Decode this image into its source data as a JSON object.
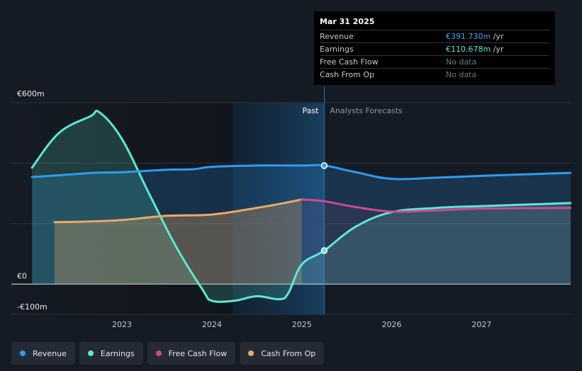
{
  "tooltip": {
    "date": "Mar 31 2025",
    "rows": [
      {
        "label": "Revenue",
        "value": "€391.730m",
        "unit": " /yr",
        "color": "#4aa3f0"
      },
      {
        "label": "Earnings",
        "value": "€110.678m",
        "unit": " /yr",
        "color": "#5ee8cf"
      },
      {
        "label": "Free Cash Flow",
        "value": "No data",
        "unit": "",
        "color": "#6f7782"
      },
      {
        "label": "Cash From Op",
        "value": "No data",
        "unit": "",
        "color": "#6f7782"
      }
    ]
  },
  "legend": [
    {
      "label": "Revenue",
      "color": "#2f9bf2"
    },
    {
      "label": "Earnings",
      "color": "#5ee8cf"
    },
    {
      "label": "Free Cash Flow",
      "color": "#cc4a8f"
    },
    {
      "label": "Cash From Op",
      "color": "#e8a965"
    }
  ],
  "chart_data": {
    "type": "area",
    "title": "",
    "xlabel": "",
    "ylabel": "",
    "ylim": [
      -100,
      600
    ],
    "y_ticks": [
      {
        "value": 600,
        "label": "€600m"
      },
      {
        "value": 0,
        "label": "€0"
      },
      {
        "value": -100,
        "label": "-€100m"
      }
    ],
    "x_ticks": [
      {
        "value": 2023,
        "label": "2023"
      },
      {
        "value": 2024,
        "label": "2024"
      },
      {
        "value": 2025,
        "label": "2025"
      },
      {
        "value": 2026,
        "label": "2026"
      },
      {
        "value": 2027,
        "label": "2027"
      }
    ],
    "xlim": [
      2021.77,
      2027.99
    ],
    "past_label": "Past",
    "forecast_label": "Analysts Forecasts",
    "divider_x": 2025.25,
    "series": [
      {
        "name": "Revenue",
        "color": "#2f9bf2",
        "x": [
          2022.0,
          2022.3,
          2022.7,
          2023.0,
          2023.5,
          2023.8,
          2024.0,
          2024.5,
          2025.0,
          2025.25,
          2025.6,
          2026.0,
          2026.5,
          2027.0,
          2027.99
        ],
        "values": [
          354,
          360,
          368,
          370,
          378,
          380,
          388,
          392,
          392,
          392,
          370,
          348,
          352,
          358,
          368
        ]
      },
      {
        "name": "Earnings",
        "color": "#5ee8cf",
        "x": [
          2022.0,
          2022.3,
          2022.65,
          2022.75,
          2023.0,
          2023.3,
          2023.6,
          2023.9,
          2024.0,
          2024.25,
          2024.5,
          2024.75,
          2024.85,
          2025.0,
          2025.25,
          2025.6,
          2026.0,
          2026.5,
          2027.0,
          2027.99
        ],
        "values": [
          385,
          500,
          555,
          568,
          480,
          300,
          125,
          -20,
          -55,
          -55,
          -40,
          -50,
          -30,
          65,
          111,
          190,
          238,
          252,
          258,
          268
        ]
      },
      {
        "name": "Free Cash Flow",
        "color": "#cc4a8f",
        "x": [
          2025.0,
          2025.25,
          2025.6,
          2026.0,
          2026.5,
          2027.0,
          2027.99
        ],
        "values": [
          280,
          274,
          255,
          240,
          244,
          250,
          252
        ]
      },
      {
        "name": "Cash From Op",
        "color": "#e8a965",
        "x": [
          2022.25,
          2022.5,
          2023.0,
          2023.5,
          2024.0,
          2024.5,
          2024.8,
          2025.0
        ],
        "values": [
          205,
          206,
          212,
          226,
          230,
          252,
          268,
          280
        ]
      }
    ],
    "highlight_points": [
      {
        "series": "Revenue",
        "x": 2025.25,
        "value": 392
      },
      {
        "series": "Earnings",
        "x": 2025.25,
        "value": 111
      }
    ]
  }
}
